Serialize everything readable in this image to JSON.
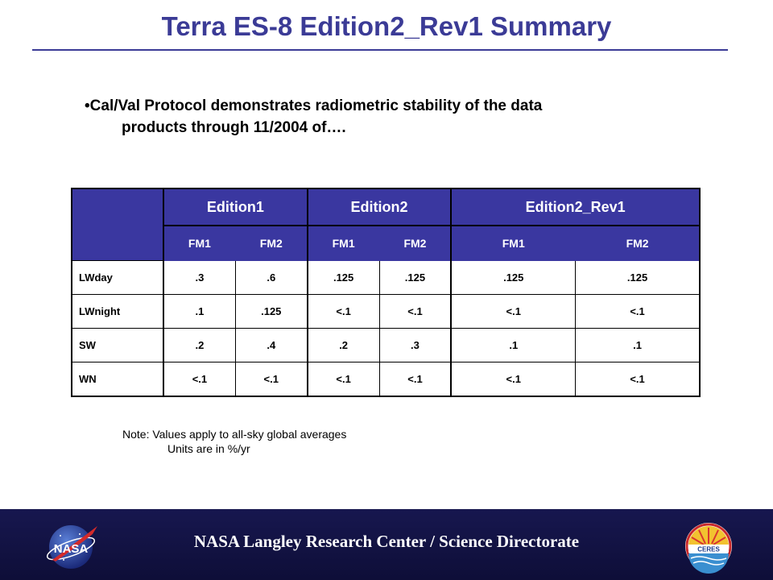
{
  "title": "Terra ES-8 Edition2_Rev1 Summary",
  "bullet": {
    "line1": "•Cal/Val Protocol demonstrates radiometric stability of the data",
    "line2": "products through 11/2004 of…."
  },
  "table": {
    "groups": [
      "Edition1",
      "Edition2",
      "Edition2_Rev1"
    ],
    "subheaders": [
      "FM1",
      "FM2",
      "FM1",
      "FM2",
      "FM1",
      "FM2"
    ],
    "rows": [
      {
        "label": "LWday",
        "values": [
          ".3",
          ".6",
          ".125",
          ".125",
          ".125",
          ".125"
        ]
      },
      {
        "label": "LWnight",
        "values": [
          ".1",
          ".125",
          "<.1",
          "<.1",
          "<.1",
          "<.1"
        ]
      },
      {
        "label": "SW",
        "values": [
          ".2",
          ".4",
          ".2",
          ".3",
          ".1",
          ".1"
        ]
      },
      {
        "label": "WN",
        "values": [
          "<.1",
          "<.1",
          "<.1",
          "<.1",
          "<.1",
          "<.1"
        ]
      }
    ]
  },
  "note": {
    "line1": "Note:  Values apply to all-sky global averages",
    "line2": "Units are in %/yr"
  },
  "footer": {
    "text": "NASA Langley Research Center / Science Directorate",
    "left_logo": "NASA",
    "right_logo": "CERES"
  },
  "colors": {
    "title": "#3b3b96",
    "table_header_bg": "#3a37a0",
    "footer_bg": "#17174f"
  },
  "icons": {
    "left": "nasa-meatball-logo-icon",
    "right": "ceres-logo-icon"
  }
}
